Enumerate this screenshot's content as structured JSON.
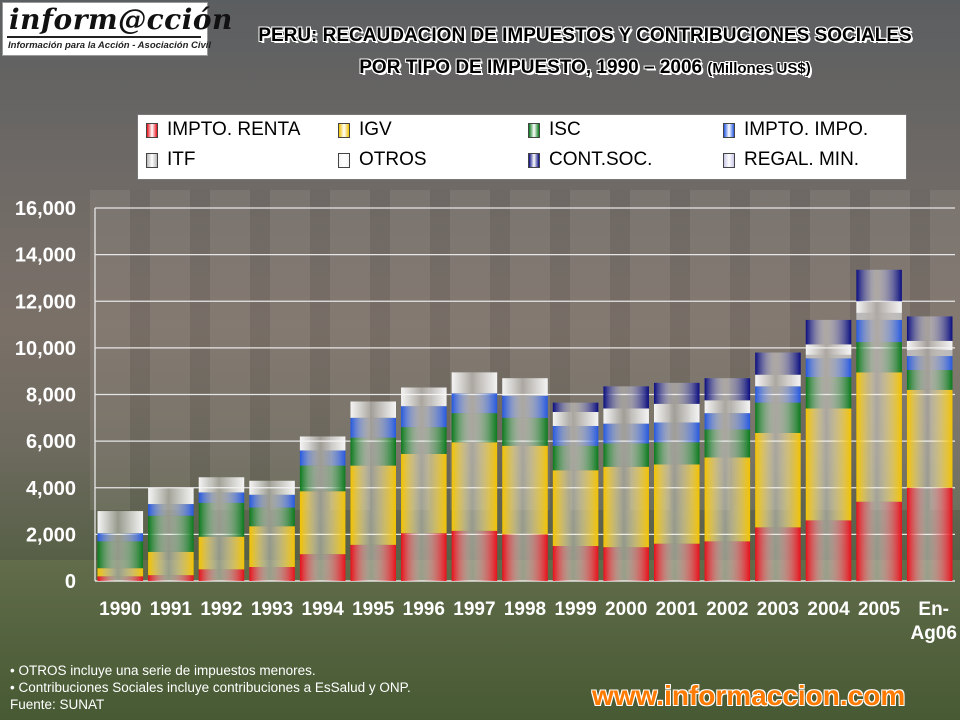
{
  "logo": {
    "brand": "inform@cción",
    "tagline": "Información para la Acción - Asociación Civil"
  },
  "title": {
    "line1": "PERU: RECAUDACION DE IMPUESTOS Y CONTRIBUCIONES SOCIALES",
    "line2": "POR TIPO DE IMPUESTO, 1990 – 2006",
    "unit": "(Millones US$)"
  },
  "notes": {
    "note1": "• OTROS incluye una serie de impuestos menores.",
    "note2": "•   Contribuciones Sociales incluye contribuciones a EsSalud y ONP.",
    "source": "Fuente:  SUNAT"
  },
  "website": "www.informaccion.com",
  "chart_data": {
    "type": "bar",
    "stacked": true,
    "categories": [
      "1990",
      "1991",
      "1992",
      "1993",
      "1994",
      "1995",
      "1996",
      "1997",
      "1998",
      "1999",
      "2000",
      "2001",
      "2002",
      "2003",
      "2004",
      "2005",
      "En-Ag06"
    ],
    "ylim": [
      0,
      16000
    ],
    "yticks": [
      "0",
      "2,000",
      "4,000",
      "6,000",
      "8,000",
      "10,000",
      "12,000",
      "14,000",
      "16,000"
    ],
    "grid": true,
    "legend_position": "top",
    "series": [
      {
        "name": "IMPTO. RENTA",
        "color": "#e8101a",
        "values": [
          200,
          250,
          500,
          600,
          1150,
          1550,
          2050,
          2150,
          2000,
          1500,
          1450,
          1600,
          1700,
          2300,
          2600,
          3400,
          4000
        ]
      },
      {
        "name": "IGV",
        "color": "#f2c200",
        "values": [
          350,
          1000,
          1400,
          1750,
          2700,
          3400,
          3400,
          3800,
          3800,
          3250,
          3450,
          3400,
          3600,
          4050,
          4800,
          5550,
          4200
        ]
      },
      {
        "name": "ISC",
        "color": "#0a7a1c",
        "values": [
          1150,
          1550,
          1450,
          800,
          1100,
          1200,
          1150,
          1250,
          1200,
          1050,
          1000,
          950,
          1200,
          1300,
          1350,
          1300,
          850
        ]
      },
      {
        "name": "IMPTO. IMPO.",
        "color": "#2558e0",
        "values": [
          350,
          500,
          450,
          550,
          650,
          850,
          900,
          850,
          950,
          850,
          850,
          850,
          700,
          700,
          800,
          950,
          600
        ]
      },
      {
        "name": "ITF",
        "color": "#b8b8b8",
        "values": [
          0,
          0,
          0,
          0,
          0,
          0,
          0,
          0,
          0,
          0,
          0,
          0,
          0,
          0,
          150,
          300,
          250
        ]
      },
      {
        "name": "OTROS",
        "color": "#f4f4f4",
        "values": [
          950,
          700,
          650,
          600,
          600,
          700,
          800,
          900,
          750,
          600,
          650,
          800,
          550,
          500,
          450,
          500,
          400
        ]
      },
      {
        "name": "CONT.SOC.",
        "color": "#0a0d80",
        "values": [
          0,
          0,
          0,
          0,
          0,
          0,
          0,
          0,
          0,
          400,
          950,
          900,
          950,
          950,
          1050,
          1350,
          1050
        ]
      },
      {
        "name": "REGAL. MIN.",
        "color": "#c8c8e8",
        "values": [
          0,
          0,
          0,
          0,
          0,
          0,
          0,
          0,
          0,
          0,
          0,
          0,
          0,
          0,
          0,
          0,
          0
        ]
      }
    ]
  }
}
